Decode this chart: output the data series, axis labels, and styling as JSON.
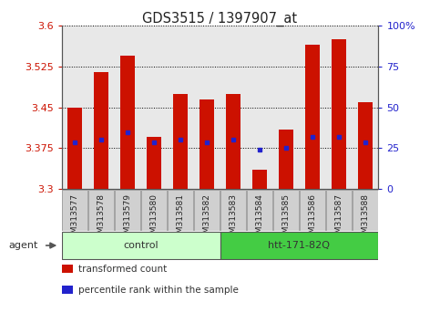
{
  "title": "GDS3515 / 1397907_at",
  "samples": [
    "GSM313577",
    "GSM313578",
    "GSM313579",
    "GSM313580",
    "GSM313581",
    "GSM313582",
    "GSM313583",
    "GSM313584",
    "GSM313585",
    "GSM313586",
    "GSM313587",
    "GSM313588"
  ],
  "bar_values": [
    3.45,
    3.515,
    3.545,
    3.395,
    3.475,
    3.465,
    3.475,
    3.335,
    3.41,
    3.565,
    3.575,
    3.46
  ],
  "percentile_values": [
    3.385,
    3.39,
    3.405,
    3.385,
    3.39,
    3.385,
    3.39,
    3.372,
    3.375,
    3.395,
    3.395,
    3.385
  ],
  "bar_bottom": 3.3,
  "ylim": [
    3.3,
    3.6
  ],
  "yticks": [
    3.3,
    3.375,
    3.45,
    3.525,
    3.6
  ],
  "ytick_labels": [
    "3.3",
    "3.375",
    "3.45",
    "3.525",
    "3.6"
  ],
  "right_yticks": [
    0,
    25,
    50,
    75,
    100
  ],
  "right_ytick_labels": [
    "0",
    "25",
    "50",
    "75",
    "100%"
  ],
  "bar_color": "#cc1100",
  "percentile_color": "#2222cc",
  "grid_color": "#000000",
  "bg_color": "#ffffff",
  "plot_bg_color": "#e8e8e8",
  "tick_bg_color": "#d0d0d0",
  "ylabel_color_left": "#cc1100",
  "ylabel_color_right": "#2222cc",
  "group_colors": [
    "#ccffcc",
    "#44cc44"
  ],
  "group_labels": [
    "control",
    "htt-171-82Q"
  ],
  "group_starts": [
    0,
    6
  ],
  "group_ends": [
    6,
    12
  ],
  "agent_label": "agent",
  "legend_bar_label": "transformed count",
  "legend_pct_label": "percentile rank within the sample",
  "bar_width": 0.55,
  "tick_fontsize": 8,
  "title_fontsize": 10.5
}
